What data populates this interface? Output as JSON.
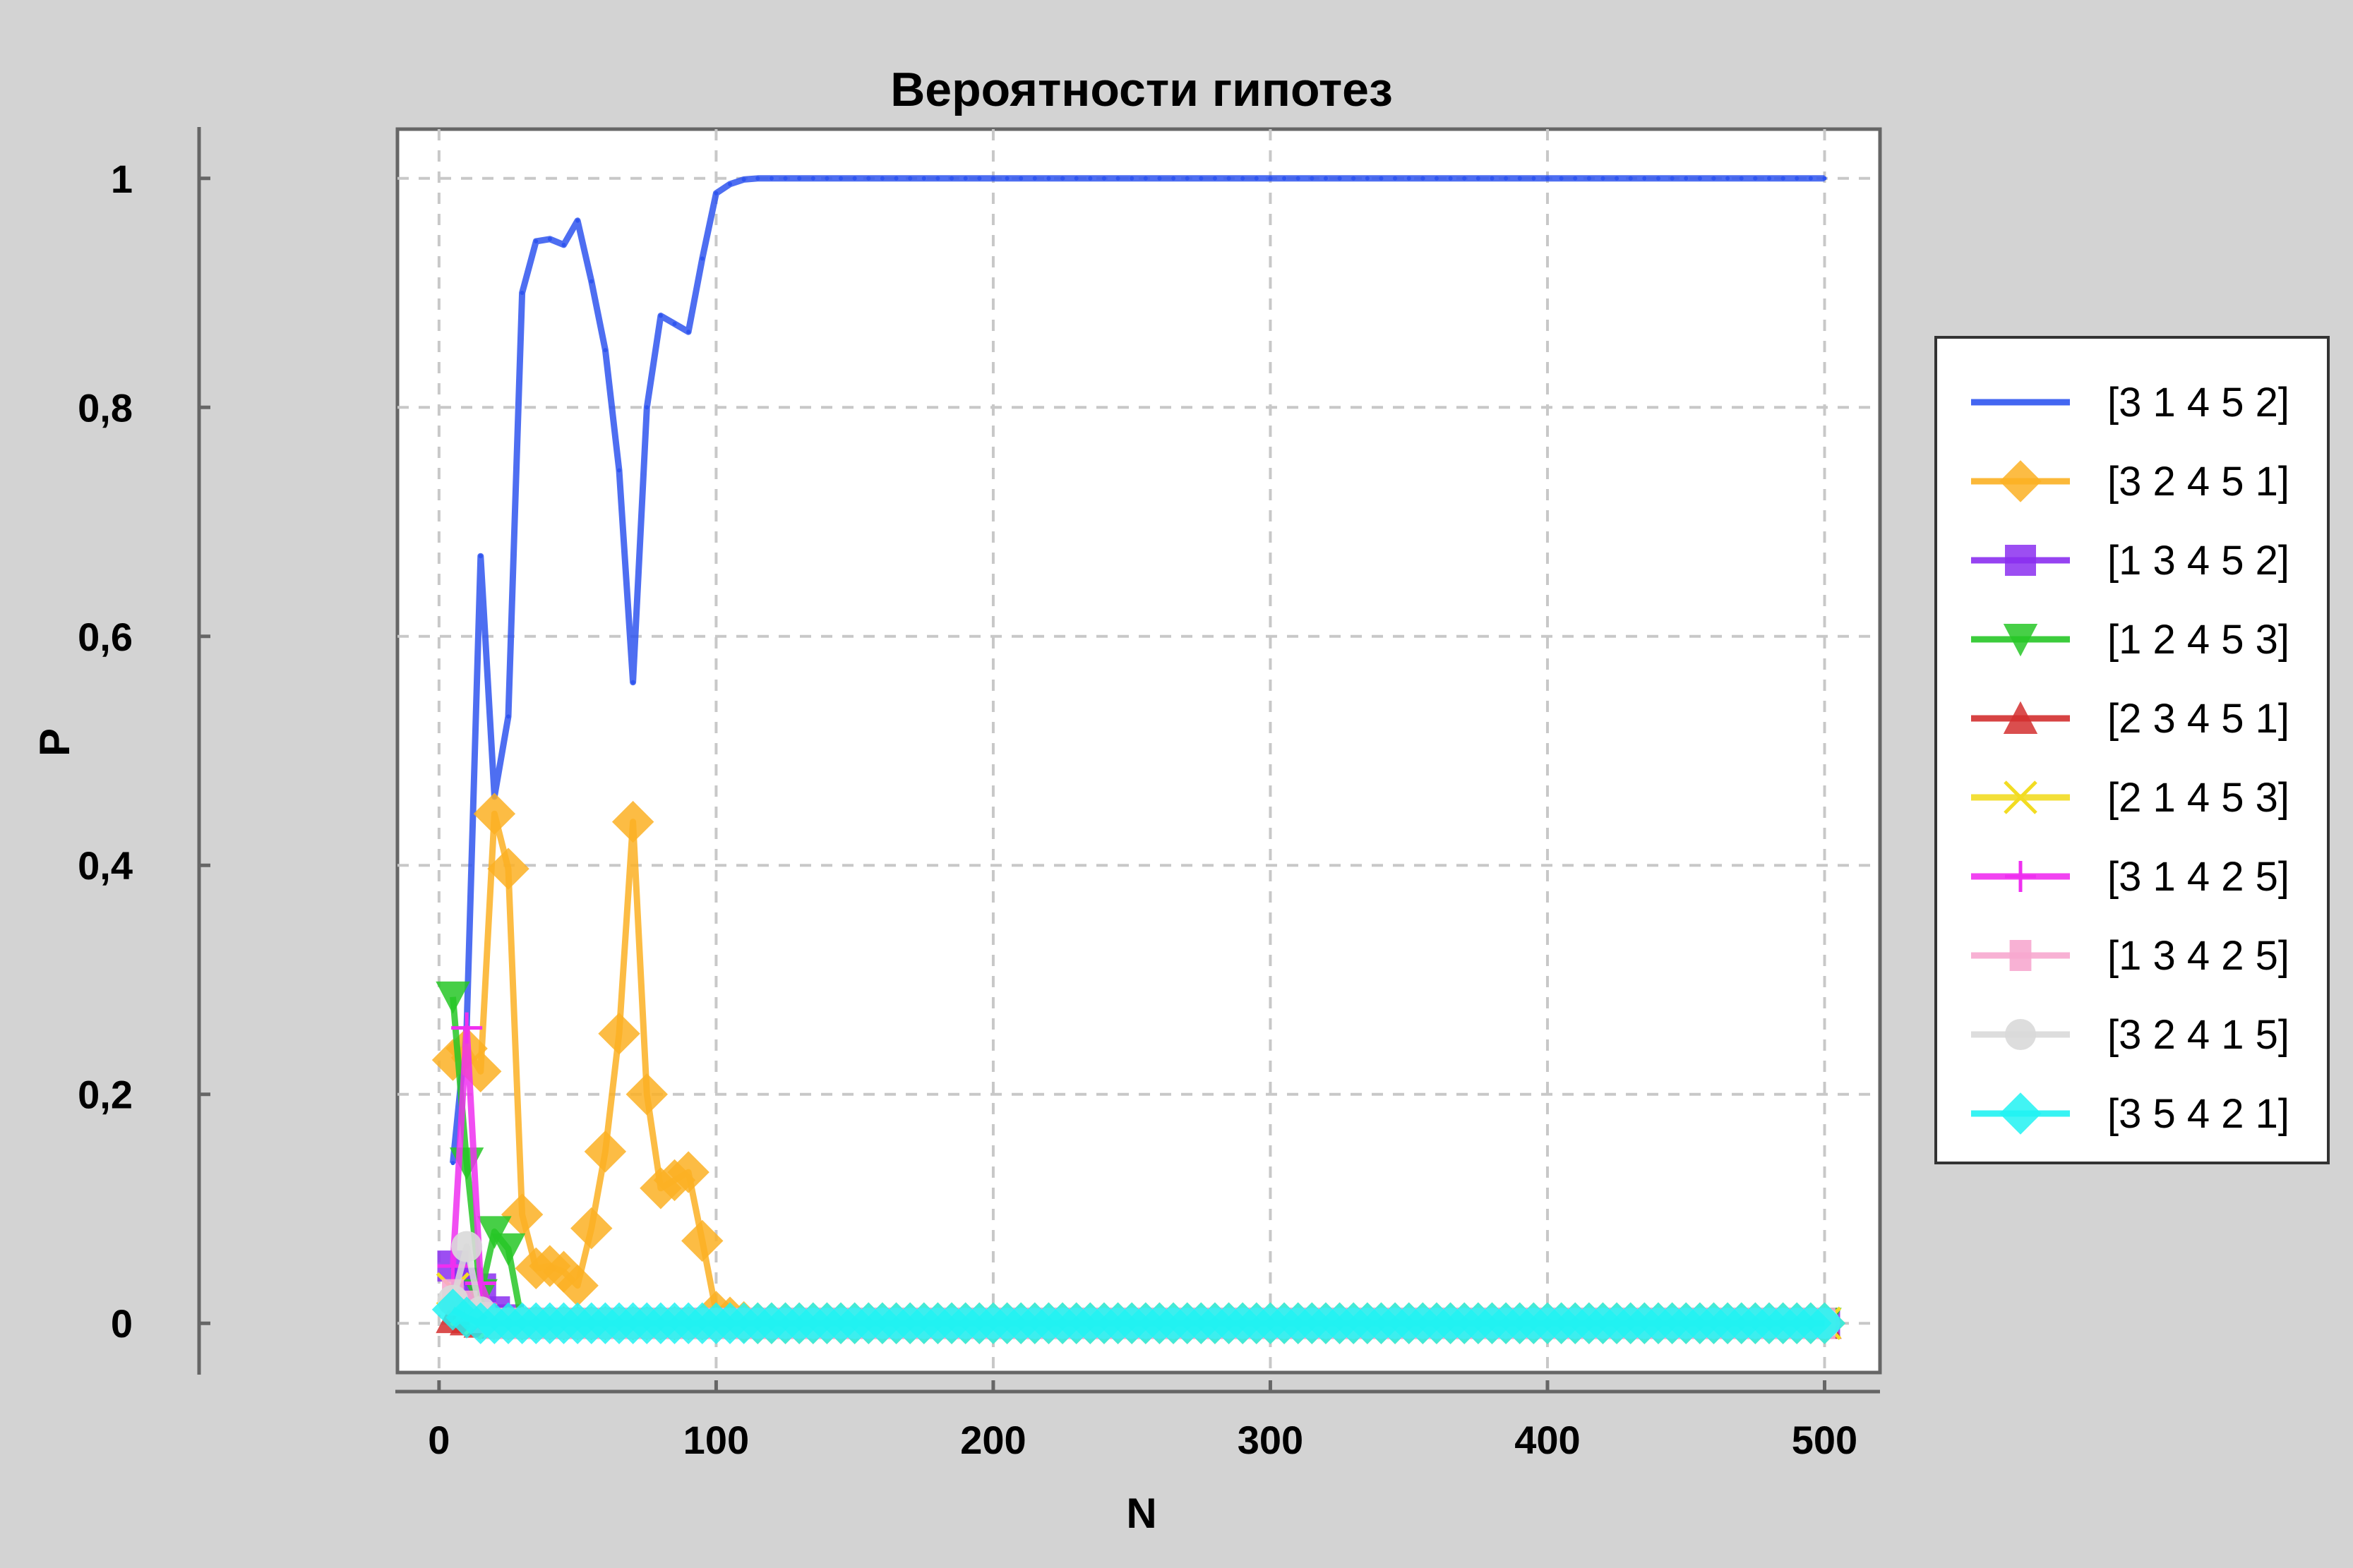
{
  "chart_data": {
    "type": "line",
    "title": "Вероятности гипотез",
    "xlabel": "N",
    "ylabel": "P",
    "xlim": [
      -15,
      520
    ],
    "ylim": [
      -0.043,
      1.043
    ],
    "xticks": [
      0,
      100,
      200,
      300,
      400,
      500
    ],
    "xtick_labels": [
      "0",
      "100",
      "200",
      "300",
      "400",
      "500"
    ],
    "yticks": [
      0,
      0.2,
      0.4,
      0.6,
      0.8,
      1
    ],
    "ytick_labels": [
      "0",
      "0,2",
      "0,4",
      "0,6",
      "0,8",
      "1"
    ],
    "grid": true,
    "legend_position": "right",
    "x_step": 5,
    "x_start": 5,
    "x_end": 500,
    "series": [
      {
        "name": "[3 1 4 5 2]",
        "color": "#2f55ef",
        "marker": "none",
        "values": [
          0.14,
          0.26,
          0.67,
          0.46,
          0.53,
          0.9,
          0.945,
          0.947,
          0.942,
          0.963,
          0.91,
          0.85,
          0.745,
          0.56,
          0.8,
          0.88,
          0.873,
          0.866,
          0.93,
          0.987,
          0.995,
          0.999,
          1
        ],
        "tail_value": 1
      },
      {
        "name": "[3 2 4 5 1]",
        "color": "#fbb023",
        "marker": "diamond",
        "values": [
          0.23,
          0.24,
          0.22,
          0.445,
          0.397,
          0.095,
          0.048,
          0.05,
          0.045,
          0.033,
          0.083,
          0.15,
          0.253,
          0.438,
          0.2,
          0.118,
          0.125,
          0.132,
          0.072,
          0.01,
          0.005,
          0.001,
          0
        ],
        "tail_value": 0
      },
      {
        "name": "[1 3 4 5 2]",
        "color": "#8b2ff0",
        "marker": "square",
        "values": [
          0.05,
          0.035,
          0.03,
          0.01,
          0.003,
          0
        ],
        "tail_value": 0
      },
      {
        "name": "[1 2 4 5 3]",
        "color": "#27c727",
        "marker": "triangle-down",
        "values": [
          0.285,
          0.14,
          0.025,
          0.08,
          0.065,
          0
        ],
        "tail_value": 0
      },
      {
        "name": "[2 3 4 5 1]",
        "color": "#d32f2f",
        "marker": "triangle-up",
        "values": [
          0.005,
          0.003,
          0.001,
          0
        ],
        "tail_value": 0
      },
      {
        "name": "[2 1 4 5 3]",
        "color": "#f2dc22",
        "marker": "x",
        "values": [
          0.03,
          0.012,
          0.004,
          0
        ],
        "tail_value": 0
      },
      {
        "name": "[3 1 4 2 5]",
        "color": "#ef2ff0",
        "marker": "plus",
        "values": [
          0.05,
          0.258,
          0.035,
          0.005,
          0
        ],
        "tail_value": 0
      },
      {
        "name": "[1 3 4 2 5]",
        "color": "#f7a9cf",
        "marker": "square-small",
        "values": [
          0.025,
          0.015,
          0.005,
          0
        ],
        "tail_value": 0
      },
      {
        "name": "[3 2 4 1 5]",
        "color": "#d9d9d9",
        "marker": "circle",
        "values": [
          0.02,
          0.067,
          0.01,
          0
        ],
        "tail_value": 0
      },
      {
        "name": "[3 5 4 2 1]",
        "color": "#21f2f2",
        "marker": "diamond",
        "values": [
          0.012,
          0.005,
          0,
          0
        ],
        "tail_value": 0
      }
    ]
  }
}
